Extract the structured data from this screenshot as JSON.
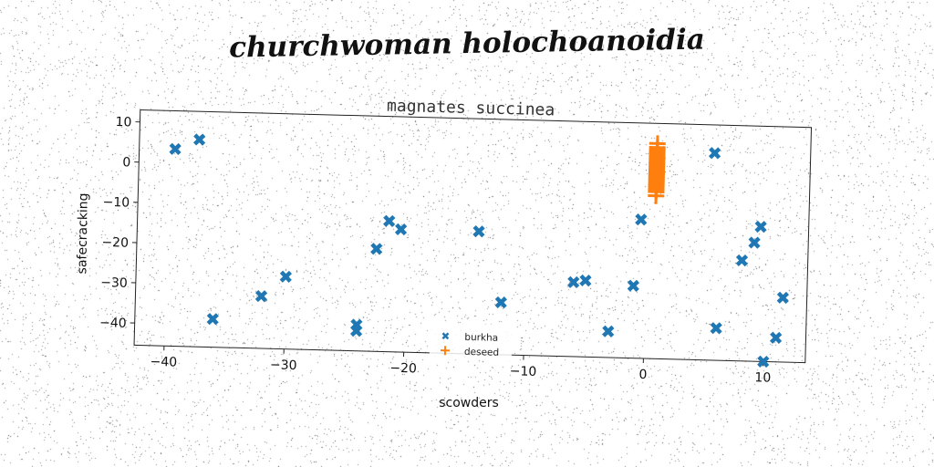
{
  "figure_title": "churchwoman holochoanoidia",
  "colors": {
    "burkha": "#1f77b4",
    "deseed": "#ff7f0e"
  },
  "chart_data": {
    "type": "scatter",
    "title": "magnates succinea",
    "xlabel": "scowders",
    "ylabel": "safecracking",
    "xlim": [
      -42.5,
      13.5
    ],
    "ylim": [
      -45.5,
      13
    ],
    "xticks": [
      -40,
      -30,
      -20,
      -10,
      0,
      10
    ],
    "yticks": [
      10,
      0,
      -10,
      -20,
      -30,
      -40
    ],
    "grid": false,
    "legend_position": "lower center",
    "series": [
      {
        "name": "burkha",
        "marker": "X",
        "points": [
          [
            -39.5,
            3.5
          ],
          [
            -37.5,
            6
          ],
          [
            -36,
            -38.5
          ],
          [
            -32,
            -32.5
          ],
          [
            -30,
            -27.5
          ],
          [
            -24,
            -39
          ],
          [
            -24,
            -40.5
          ],
          [
            -22.5,
            -20
          ],
          [
            -21.5,
            -13
          ],
          [
            -20.5,
            -15
          ],
          [
            -14,
            -15
          ],
          [
            -12,
            -32.5
          ],
          [
            -6,
            -27
          ],
          [
            -5,
            -26.5
          ],
          [
            -3,
            -39
          ],
          [
            -1,
            -27.5
          ],
          [
            -0.5,
            -11
          ],
          [
            5.5,
            6
          ],
          [
            6,
            -37.5
          ],
          [
            8,
            -20.5
          ],
          [
            9,
            -16
          ],
          [
            9.5,
            -12
          ],
          [
            10,
            -45.5
          ],
          [
            11,
            -39.5
          ],
          [
            11.5,
            -29.5
          ]
        ]
      },
      {
        "name": "deseed",
        "marker": "+",
        "points": [
          [
            0.7,
            8
          ],
          [
            0.7,
            7
          ],
          [
            0.7,
            6.5
          ],
          [
            0.7,
            6
          ],
          [
            0.7,
            5.5
          ],
          [
            0.7,
            5
          ],
          [
            0.7,
            4.5
          ],
          [
            0.7,
            4
          ],
          [
            0.7,
            3.5
          ],
          [
            0.7,
            3
          ],
          [
            0.7,
            2.5
          ],
          [
            0.7,
            2
          ],
          [
            0.7,
            1.5
          ],
          [
            0.7,
            1
          ],
          [
            0.7,
            0.5
          ],
          [
            0.7,
            0
          ],
          [
            0.7,
            -0.5
          ],
          [
            0.7,
            -1
          ],
          [
            0.7,
            -1.5
          ],
          [
            0.7,
            -2
          ],
          [
            0.7,
            -2.5
          ],
          [
            0.7,
            -3
          ],
          [
            0.7,
            -3.5
          ],
          [
            0.7,
            -4
          ],
          [
            0.7,
            -5
          ]
        ]
      }
    ]
  }
}
